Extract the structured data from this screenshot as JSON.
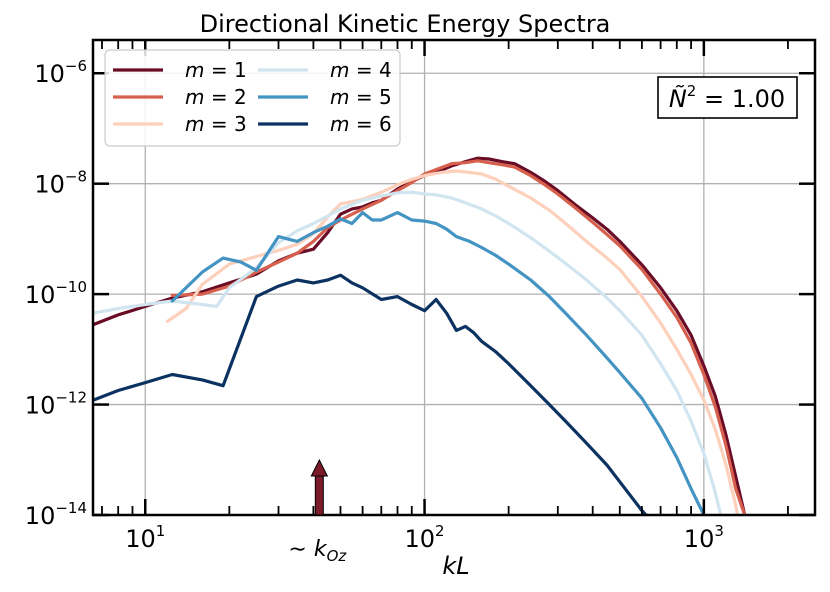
{
  "chart_data": {
    "type": "line",
    "title": "Directional Kinetic Energy Spectra",
    "xlabel": "kL",
    "ylabel": "",
    "xscale": "log",
    "yscale": "log",
    "xlim": [
      6.5,
      2500
    ],
    "ylim": [
      1e-14,
      4e-06
    ],
    "x_ticks": [
      {
        "value": 10,
        "base": "10",
        "exp": "1"
      },
      {
        "value": 100,
        "base": "10",
        "exp": "2"
      },
      {
        "value": 1000,
        "base": "10",
        "exp": "3"
      }
    ],
    "y_ticks": [
      {
        "value": 1e-06,
        "base": "10",
        "exp": "−6"
      },
      {
        "value": 1e-08,
        "base": "10",
        "exp": "−8"
      },
      {
        "value": 1e-10,
        "base": "10",
        "exp": "−10"
      },
      {
        "value": 1e-12,
        "base": "10",
        "exp": "−12"
      },
      {
        "value": 1e-14,
        "base": "10",
        "exp": "−14"
      }
    ],
    "grid": true,
    "legend_position": "top-left",
    "annotation_box": {
      "symbol": "Ñ",
      "exp": "2",
      "text": " = 1.00"
    },
    "arrow_annotation": {
      "x": 42,
      "label_prefix": "∼ k",
      "label_sub": "Oz",
      "color": "#7b1a2a"
    },
    "series": [
      {
        "name": "m = 1",
        "label_base": "m",
        "label_value": " = 1",
        "color": "#6a0c26",
        "points": [
          [
            6.5,
            2.8e-11
          ],
          [
            8,
            4.2e-11
          ],
          [
            10,
            6e-11
          ],
          [
            12.5,
            8.5e-11
          ],
          [
            16,
            1.1e-10
          ],
          [
            20,
            1.6e-10
          ],
          [
            25,
            2.3e-10
          ],
          [
            30,
            4e-10
          ],
          [
            35,
            5.5e-10
          ],
          [
            40,
            6.5e-10
          ],
          [
            45,
            1.3e-09
          ],
          [
            50,
            2.8e-09
          ],
          [
            55,
            3.5e-09
          ],
          [
            60,
            3.8e-09
          ],
          [
            65,
            4.5e-09
          ],
          [
            70,
            5e-09
          ],
          [
            80,
            8e-09
          ],
          [
            90,
            1.1e-08
          ],
          [
            100,
            1.4e-08
          ],
          [
            110,
            1.6e-08
          ],
          [
            125,
            2.1e-08
          ],
          [
            140,
            2.5e-08
          ],
          [
            155,
            2.9e-08
          ],
          [
            170,
            2.8e-08
          ],
          [
            190,
            2.5e-08
          ],
          [
            210,
            2.3e-08
          ],
          [
            240,
            1.6e-08
          ],
          [
            270,
            1.1e-08
          ],
          [
            300,
            7.5e-09
          ],
          [
            350,
            4e-09
          ],
          [
            400,
            2.4e-09
          ],
          [
            450,
            1.5e-09
          ],
          [
            500,
            9e-10
          ],
          [
            600,
            3.4e-10
          ],
          [
            700,
            1.3e-10
          ],
          [
            800,
            5e-11
          ],
          [
            900,
            1.8e-11
          ],
          [
            1000,
            5e-12
          ],
          [
            1100,
            1.4e-12
          ],
          [
            1200,
            2.8e-13
          ],
          [
            1300,
            5e-14
          ],
          [
            1400,
            1e-14
          ]
        ]
      },
      {
        "name": "m = 2",
        "label_base": "m",
        "label_value": " = 2",
        "color": "#d6604d",
        "points": [
          [
            12.5,
            9.5e-11
          ],
          [
            16,
            1e-10
          ],
          [
            20,
            1.4e-10
          ],
          [
            25,
            2.5e-10
          ],
          [
            30,
            3.8e-10
          ],
          [
            35,
            5.5e-10
          ],
          [
            40,
            9e-10
          ],
          [
            45,
            1.6e-09
          ],
          [
            50,
            2.2e-09
          ],
          [
            60,
            3.5e-09
          ],
          [
            70,
            5e-09
          ],
          [
            80,
            7.5e-09
          ],
          [
            90,
            1.05e-08
          ],
          [
            100,
            1.5e-08
          ],
          [
            110,
            1.8e-08
          ],
          [
            125,
            2.3e-08
          ],
          [
            140,
            2.4e-08
          ],
          [
            155,
            2.6e-08
          ],
          [
            170,
            2.4e-08
          ],
          [
            190,
            2.2e-08
          ],
          [
            210,
            2e-08
          ],
          [
            240,
            1.4e-08
          ],
          [
            270,
            9.5e-09
          ],
          [
            300,
            6.5e-09
          ],
          [
            350,
            3.5e-09
          ],
          [
            400,
            2e-09
          ],
          [
            450,
            1.2e-09
          ],
          [
            500,
            7.5e-10
          ],
          [
            600,
            2.8e-10
          ],
          [
            700,
            1e-10
          ],
          [
            800,
            3.8e-11
          ],
          [
            900,
            1.3e-11
          ],
          [
            1000,
            3.5e-12
          ],
          [
            1100,
            9e-13
          ],
          [
            1200,
            1.8e-13
          ],
          [
            1300,
            3e-14
          ],
          [
            1400,
            1e-14
          ]
        ]
      },
      {
        "name": "m = 3",
        "label_base": "m",
        "label_value": " = 3",
        "color": "#fdd0bb",
        "points": [
          [
            12,
            3.2e-11
          ],
          [
            14,
            5.5e-11
          ],
          [
            16,
            1.5e-10
          ],
          [
            20,
            3.5e-10
          ],
          [
            25,
            4.8e-10
          ],
          [
            30,
            6.2e-10
          ],
          [
            35,
            8e-10
          ],
          [
            40,
            1.25e-09
          ],
          [
            45,
            2.5e-09
          ],
          [
            50,
            4.3e-09
          ],
          [
            60,
            5.2e-09
          ],
          [
            70,
            7e-09
          ],
          [
            80,
            9.5e-09
          ],
          [
            90,
            1.2e-08
          ],
          [
            100,
            1.4e-08
          ],
          [
            115,
            1.6e-08
          ],
          [
            130,
            1.7e-08
          ],
          [
            145,
            1.6e-08
          ],
          [
            160,
            1.5e-08
          ],
          [
            180,
            1.2e-08
          ],
          [
            200,
            9e-09
          ],
          [
            240,
            5.5e-09
          ],
          [
            280,
            3.3e-09
          ],
          [
            320,
            1.9e-09
          ],
          [
            380,
            9e-10
          ],
          [
            450,
            4.5e-10
          ],
          [
            500,
            2.8e-10
          ],
          [
            600,
            9e-11
          ],
          [
            700,
            3e-11
          ],
          [
            800,
            1e-11
          ],
          [
            900,
            3.5e-12
          ],
          [
            1000,
            1.2e-12
          ],
          [
            1100,
            3.5e-13
          ],
          [
            1200,
            8e-14
          ],
          [
            1300,
            1.5e-14
          ],
          [
            1320,
            1e-14
          ]
        ]
      },
      {
        "name": "m = 4",
        "label_base": "m",
        "label_value": " = 4",
        "color": "#d1e5f0",
        "points": [
          [
            6.5,
            4.5e-11
          ],
          [
            8,
            5.5e-11
          ],
          [
            10,
            6.5e-11
          ],
          [
            12.5,
            7.5e-11
          ],
          [
            16,
            6.5e-11
          ],
          [
            18,
            6e-11
          ],
          [
            20,
            1.3e-10
          ],
          [
            25,
            3e-10
          ],
          [
            30,
            8.5e-10
          ],
          [
            35,
            1.4e-09
          ],
          [
            40,
            1.9e-09
          ],
          [
            45,
            2.6e-09
          ],
          [
            50,
            3.5e-09
          ],
          [
            60,
            5e-09
          ],
          [
            70,
            6e-09
          ],
          [
            80,
            6.8e-09
          ],
          [
            90,
            7e-09
          ],
          [
            100,
            6.5e-09
          ],
          [
            110,
            6.3e-09
          ],
          [
            125,
            5.5e-09
          ],
          [
            140,
            4.5e-09
          ],
          [
            160,
            3.5e-09
          ],
          [
            180,
            2.6e-09
          ],
          [
            200,
            1.9e-09
          ],
          [
            240,
            1.05e-09
          ],
          [
            280,
            6e-10
          ],
          [
            320,
            3.6e-10
          ],
          [
            380,
            1.8e-10
          ],
          [
            450,
            8.5e-11
          ],
          [
            500,
            5e-11
          ],
          [
            600,
            1.8e-11
          ],
          [
            700,
            5.5e-12
          ],
          [
            800,
            1.8e-12
          ],
          [
            900,
            5e-13
          ],
          [
            1000,
            1.3e-13
          ],
          [
            1100,
            2.5e-14
          ],
          [
            1150,
            1e-14
          ]
        ]
      },
      {
        "name": "m = 5",
        "label_base": "m",
        "label_value": " = 5",
        "color": "#4393c3",
        "points": [
          [
            12.5,
            7.5e-11
          ],
          [
            16,
            2.5e-10
          ],
          [
            19,
            4.5e-10
          ],
          [
            22,
            3.8e-10
          ],
          [
            25,
            2.7e-10
          ],
          [
            30,
            1.1e-09
          ],
          [
            35,
            9e-10
          ],
          [
            40,
            1.3e-09
          ],
          [
            45,
            1.7e-09
          ],
          [
            50,
            2.3e-09
          ],
          [
            55,
            1.9e-09
          ],
          [
            60,
            3e-09
          ],
          [
            65,
            2.2e-09
          ],
          [
            70,
            2.2e-09
          ],
          [
            80,
            3e-09
          ],
          [
            90,
            2.2e-09
          ],
          [
            100,
            2.1e-09
          ],
          [
            110,
            1.9e-09
          ],
          [
            120,
            1.5e-09
          ],
          [
            130,
            1.1e-09
          ],
          [
            145,
            9e-10
          ],
          [
            160,
            7e-10
          ],
          [
            180,
            5e-10
          ],
          [
            200,
            3.5e-10
          ],
          [
            240,
            1.8e-10
          ],
          [
            280,
            9e-11
          ],
          [
            320,
            4.5e-11
          ],
          [
            380,
            1.8e-11
          ],
          [
            450,
            7e-12
          ],
          [
            500,
            3.8e-12
          ],
          [
            600,
            1.3e-12
          ],
          [
            700,
            3.8e-13
          ],
          [
            800,
            1.1e-13
          ],
          [
            900,
            3e-14
          ],
          [
            1000,
            1e-14
          ]
        ]
      },
      {
        "name": "m = 6",
        "label_base": "m",
        "label_value": " = 6",
        "color": "#0b3260",
        "points": [
          [
            6.5,
            1.2e-12
          ],
          [
            8,
            1.8e-12
          ],
          [
            10,
            2.5e-12
          ],
          [
            12.5,
            3.5e-12
          ],
          [
            16,
            2.8e-12
          ],
          [
            19,
            2.2e-12
          ],
          [
            25,
            9e-11
          ],
          [
            30,
            1.4e-10
          ],
          [
            35,
            1.8e-10
          ],
          [
            40,
            1.6e-10
          ],
          [
            45,
            1.8e-10
          ],
          [
            50,
            2.2e-10
          ],
          [
            55,
            1.6e-10
          ],
          [
            60,
            1.3e-10
          ],
          [
            70,
            8e-11
          ],
          [
            80,
            9e-11
          ],
          [
            90,
            6.5e-11
          ],
          [
            100,
            5e-11
          ],
          [
            110,
            8e-11
          ],
          [
            120,
            4.5e-11
          ],
          [
            130,
            2.2e-11
          ],
          [
            140,
            2.6e-11
          ],
          [
            150,
            2e-11
          ],
          [
            160,
            1.4e-11
          ],
          [
            180,
            9e-12
          ],
          [
            200,
            5.5e-12
          ],
          [
            240,
            2.2e-12
          ],
          [
            280,
            1e-12
          ],
          [
            320,
            5e-13
          ],
          [
            380,
            2e-13
          ],
          [
            450,
            8e-14
          ],
          [
            500,
            4e-14
          ],
          [
            600,
            1.2e-14
          ],
          [
            620,
            1e-14
          ]
        ]
      }
    ]
  }
}
